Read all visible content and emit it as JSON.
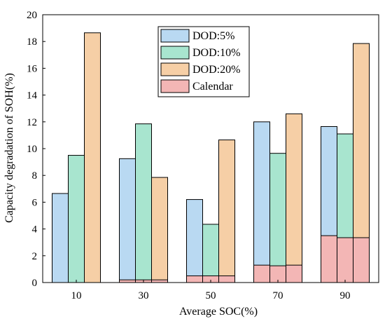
{
  "chart_data": {
    "type": "bar",
    "xlabel": "Average SOC(%)",
    "ylabel": "Capacity degradation of SOH(%)",
    "categories": [
      "10",
      "30",
      "50",
      "70",
      "90"
    ],
    "ylim": [
      0,
      20
    ],
    "yticks": [
      0,
      2,
      4,
      6,
      8,
      10,
      12,
      14,
      16,
      18,
      20
    ],
    "series": [
      {
        "name": "DOD:5%",
        "color": "#b9d9f2",
        "values": [
          6.65,
          9.25,
          6.2,
          12.0,
          11.65
        ]
      },
      {
        "name": "DOD:10%",
        "color": "#a8e5cf",
        "values": [
          9.5,
          11.85,
          4.35,
          9.65,
          11.1
        ]
      },
      {
        "name": "DOD:20%",
        "color": "#f6cfa6",
        "values": [
          18.65,
          7.85,
          10.65,
          12.6,
          17.85
        ]
      }
    ],
    "calendar": {
      "name": "Calendar",
      "color": "#f3b6b5",
      "values": [
        [
          0,
          0,
          0
        ],
        [
          0.2,
          0.2,
          0.2
        ],
        [
          0.5,
          0.5,
          0.5
        ],
        [
          1.3,
          1.25,
          1.3
        ],
        [
          3.5,
          3.35,
          3.35
        ]
      ]
    },
    "legend_position": "top-center",
    "grid": false
  }
}
